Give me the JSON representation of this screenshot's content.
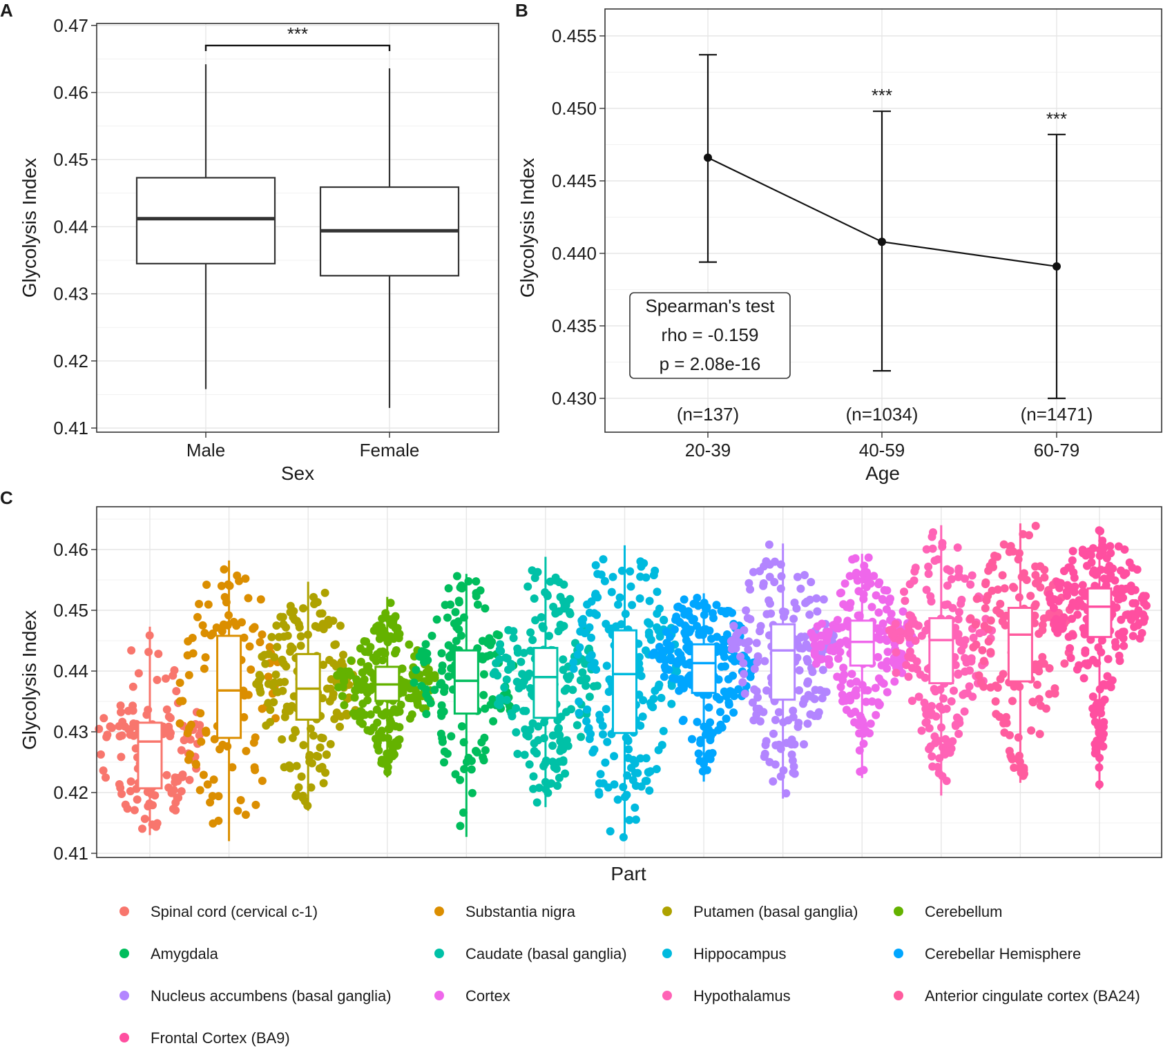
{
  "chart_data": [
    {
      "panel": "A",
      "type": "box",
      "xlabel": "Sex",
      "ylabel": "Glycolysis Index",
      "ylim": [
        0.41,
        0.47
      ],
      "yticks": [
        "0.41",
        "0.42",
        "0.43",
        "0.44",
        "0.45",
        "0.46",
        "0.47"
      ],
      "categories": [
        "Male",
        "Female"
      ],
      "boxes": [
        {
          "category": "Male",
          "whisker_low": 0.4158,
          "q1": 0.4345,
          "median": 0.4412,
          "q3": 0.4473,
          "whisker_high": 0.4642
        },
        {
          "category": "Female",
          "whisker_low": 0.413,
          "q1": 0.4327,
          "median": 0.4394,
          "q3": 0.4459,
          "whisker_high": 0.4636
        }
      ],
      "significance": {
        "label": "***",
        "y": 0.467
      }
    },
    {
      "panel": "B",
      "type": "line",
      "xlabel": "Age",
      "ylabel": "Glycolysis Index",
      "ylim": [
        0.4277,
        0.4559
      ],
      "yticks": [
        "0.430",
        "0.435",
        "0.440",
        "0.445",
        "0.450",
        "0.455"
      ],
      "categories": [
        "20-39",
        "40-59",
        "60-79"
      ],
      "points": [
        {
          "category": "20-39",
          "mean": 0.4466,
          "low": 0.4394,
          "high": 0.4537,
          "n_label": "(n=137)",
          "sig": ""
        },
        {
          "category": "40-59",
          "mean": 0.4408,
          "low": 0.4319,
          "high": 0.4498,
          "n_label": "(n=1034)",
          "sig": "***"
        },
        {
          "category": "60-79",
          "mean": 0.4391,
          "low": 0.43,
          "high": 0.4482,
          "n_label": "(n=1471)",
          "sig": "***"
        }
      ],
      "annotation": [
        "Spearman's test",
        "rho = -0.159",
        "p = 2.08e-16"
      ]
    },
    {
      "panel": "C",
      "type": "scatter",
      "xlabel": "Part",
      "ylabel": "Glycolysis Index",
      "ylim": [
        0.41,
        0.4667
      ],
      "yticks": [
        "0.41",
        "0.42",
        "0.43",
        "0.44",
        "0.45",
        "0.46"
      ],
      "groups": [
        {
          "name": "Spinal cord (cervical c-1)",
          "color": "#F8766D",
          "min": 0.413,
          "q1": 0.4207,
          "median": 0.4284,
          "q3": 0.4315,
          "max": 0.4473,
          "n": 130
        },
        {
          "name": "Substantia nigra",
          "color": "#DB8E00",
          "min": 0.412,
          "q1": 0.429,
          "median": 0.4368,
          "q3": 0.4458,
          "max": 0.4582,
          "n": 110
        },
        {
          "name": "Putamen (basal ganglia)",
          "color": "#AEA200",
          "min": 0.417,
          "q1": 0.432,
          "median": 0.4371,
          "q3": 0.4428,
          "max": 0.4547,
          "n": 170
        },
        {
          "name": "Cerebellum",
          "color": "#64B200",
          "min": 0.4225,
          "q1": 0.4351,
          "median": 0.4378,
          "q3": 0.4407,
          "max": 0.4522,
          "n": 240
        },
        {
          "name": "Amygdala",
          "color": "#00BD5C",
          "min": 0.4127,
          "q1": 0.433,
          "median": 0.4384,
          "q3": 0.4434,
          "max": 0.456,
          "n": 140
        },
        {
          "name": "Caudate (basal ganglia)",
          "color": "#00C1A7",
          "min": 0.4176,
          "q1": 0.4323,
          "median": 0.439,
          "q3": 0.4438,
          "max": 0.4588,
          "n": 200
        },
        {
          "name": "Hippocampus",
          "color": "#00BADE",
          "min": 0.4124,
          "q1": 0.4298,
          "median": 0.4395,
          "q3": 0.4467,
          "max": 0.4607,
          "n": 180
        },
        {
          "name": "Cerebellar Hemisphere",
          "color": "#00A6FF",
          "min": 0.4218,
          "q1": 0.4364,
          "median": 0.4413,
          "q3": 0.4444,
          "max": 0.4528,
          "n": 200
        },
        {
          "name": "Nucleus accumbens (basal ganglia)",
          "color": "#B385FF",
          "min": 0.419,
          "q1": 0.4353,
          "median": 0.4434,
          "q3": 0.4477,
          "max": 0.461,
          "n": 190
        },
        {
          "name": "Cortex",
          "color": "#EF67EB",
          "min": 0.4224,
          "q1": 0.4409,
          "median": 0.4448,
          "q3": 0.4483,
          "max": 0.4593,
          "n": 210
        },
        {
          "name": "Hypothalamus",
          "color": "#FF63B6",
          "min": 0.4195,
          "q1": 0.438,
          "median": 0.4451,
          "q3": 0.4487,
          "max": 0.464,
          "n": 190
        },
        {
          "name": "Anterior cingulate cortex (BA24)",
          "color": "#FF5C9E",
          "min": 0.4216,
          "q1": 0.4383,
          "median": 0.446,
          "q3": 0.4504,
          "max": 0.4643,
          "n": 160
        },
        {
          "name": "Frontal Cortex (BA9)",
          "color": "#FF4FA0",
          "min": 0.4205,
          "q1": 0.4456,
          "median": 0.4506,
          "q3": 0.4536,
          "max": 0.4637,
          "n": 230
        }
      ]
    }
  ]
}
